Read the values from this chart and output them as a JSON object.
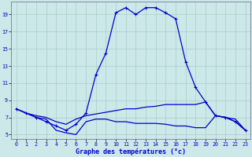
{
  "title": "Graphe des températures (°c)",
  "background_color": "#cce8e8",
  "grid_color": "#aacccc",
  "line_color": "#0000cc",
  "xlim": [
    -0.5,
    23.5
  ],
  "ylim": [
    4.5,
    20.5
  ],
  "xticks": [
    0,
    1,
    2,
    3,
    4,
    5,
    6,
    7,
    8,
    9,
    10,
    11,
    12,
    13,
    14,
    15,
    16,
    17,
    18,
    19,
    20,
    21,
    22,
    23
  ],
  "yticks": [
    5,
    7,
    9,
    11,
    13,
    15,
    17,
    19
  ],
  "series1_x": [
    0,
    1,
    2,
    3,
    4,
    5,
    6,
    7,
    8,
    9,
    10,
    11,
    12,
    13,
    14,
    15,
    16,
    17,
    18,
    19,
    20,
    21,
    22,
    23
  ],
  "series1_y": [
    8.0,
    7.5,
    7.0,
    6.5,
    6.0,
    5.5,
    6.2,
    7.5,
    12.0,
    14.5,
    19.2,
    19.8,
    19.0,
    19.8,
    19.8,
    19.2,
    18.5,
    13.5,
    10.5,
    8.8,
    7.2,
    7.0,
    6.5,
    5.5
  ],
  "series2_x": [
    0,
    1,
    2,
    3,
    4,
    5,
    6,
    7,
    8,
    9,
    10,
    11,
    12,
    13,
    14,
    15,
    16,
    17,
    18,
    19,
    20,
    21,
    22,
    23
  ],
  "series2_y": [
    8.0,
    7.5,
    7.2,
    7.0,
    6.5,
    6.2,
    6.8,
    7.2,
    7.4,
    7.6,
    7.8,
    8.0,
    8.0,
    8.2,
    8.3,
    8.5,
    8.5,
    8.5,
    8.5,
    8.8,
    7.2,
    7.0,
    6.8,
    5.5
  ],
  "series3_x": [
    0,
    1,
    2,
    3,
    4,
    5,
    6,
    7,
    8,
    9,
    10,
    11,
    12,
    13,
    14,
    15,
    16,
    17,
    18,
    19,
    20,
    21,
    22,
    23
  ],
  "series3_y": [
    8.0,
    7.5,
    7.0,
    6.8,
    5.5,
    5.2,
    5.0,
    6.5,
    6.8,
    6.8,
    6.5,
    6.5,
    6.3,
    6.3,
    6.3,
    6.2,
    6.0,
    6.0,
    5.8,
    5.8,
    7.2,
    7.0,
    6.5,
    5.5
  ],
  "xlabel_fontsize": 6.0,
  "tick_fontsize": 4.8,
  "linewidth": 0.9,
  "marker_size": 3.5
}
